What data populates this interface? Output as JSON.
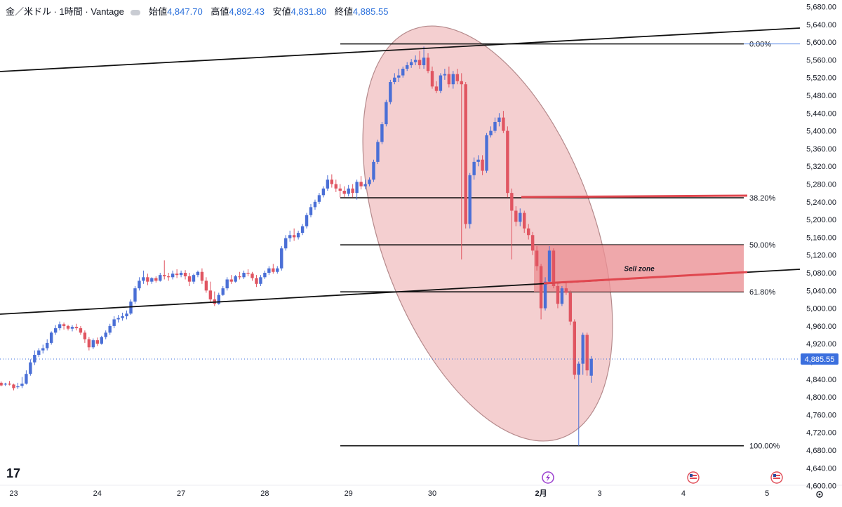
{
  "header": {
    "symbol": "金／米ドル · 1時間 · Vantage",
    "open_label": "始値",
    "open_value": "4,847.70",
    "high_label": "高値",
    "high_value": "4,892.43",
    "low_label": "安値",
    "low_value": "4,831.80",
    "close_label": "終値",
    "close_value": "4,885.55"
  },
  "last_price_label": "4,885.55",
  "logo_text": "17",
  "sell_zone_label": "Sell zone",
  "colors": {
    "up": "#4a6fd6",
    "down": "#e05561",
    "ellipse_fill": "#f2c4c6",
    "sell_zone_fill": "#ea8f94",
    "red_line": "#e0474f",
    "price_tag": "#3b6fde"
  },
  "chart_data": {
    "type": "candlestick",
    "ylim": [
      4600,
      5680
    ],
    "y_ticks": [
      "5,680.00",
      "5,640.00",
      "5,600.00",
      "5,560.00",
      "5,520.00",
      "5,480.00",
      "5,440.00",
      "5,400.00",
      "5,360.00",
      "5,320.00",
      "5,280.00",
      "5,240.00",
      "5,200.00",
      "5,160.00",
      "5,120.00",
      "5,080.00",
      "5,040.00",
      "5,000.00",
      "4,960.00",
      "4,920.00",
      "4,880.00",
      "4,840.00",
      "4,800.00",
      "4,760.00",
      "4,720.00",
      "4,680.00",
      "4,640.00",
      "4,600.00"
    ],
    "x_ticks": [
      {
        "label": "23",
        "index": 3
      },
      {
        "label": "24",
        "index": 23
      },
      {
        "label": "27",
        "index": 43
      },
      {
        "label": "28",
        "index": 63
      },
      {
        "label": "29",
        "index": 83
      },
      {
        "label": "30",
        "index": 103
      },
      {
        "label": "2月",
        "index": 129
      },
      {
        "label": "3",
        "index": 143
      },
      {
        "label": "4",
        "index": 163
      },
      {
        "label": "5",
        "index": 183
      }
    ],
    "candles": [
      [
        4832,
        4835,
        4826,
        4824
      ],
      [
        4828,
        4832,
        4830,
        4825
      ],
      [
        4830,
        4836,
        4828,
        4826
      ],
      [
        4828,
        4830,
        4820,
        4815
      ],
      [
        4822,
        4832,
        4824,
        4818
      ],
      [
        4825,
        4845,
        4830,
        4820
      ],
      [
        4830,
        4860,
        4852,
        4828
      ],
      [
        4852,
        4885,
        4878,
        4848
      ],
      [
        4878,
        4905,
        4895,
        4872
      ],
      [
        4895,
        4910,
        4905,
        4890
      ],
      [
        4905,
        4918,
        4910,
        4898
      ],
      [
        4910,
        4930,
        4922,
        4905
      ],
      [
        4922,
        4948,
        4945,
        4918
      ],
      [
        4945,
        4962,
        4955,
        4940
      ],
      [
        4955,
        4970,
        4964,
        4950
      ],
      [
        4964,
        4968,
        4960,
        4952
      ],
      [
        4960,
        4963,
        4954,
        4950
      ],
      [
        4954,
        4962,
        4958,
        4948
      ],
      [
        4958,
        4965,
        4955,
        4950
      ],
      [
        4955,
        4960,
        4945,
        4940
      ],
      [
        4945,
        4950,
        4930,
        4922
      ],
      [
        4930,
        4935,
        4912,
        4905
      ],
      [
        4912,
        4932,
        4928,
        4908
      ],
      [
        4928,
        4934,
        4920,
        4915
      ],
      [
        4920,
        4938,
        4935,
        4918
      ],
      [
        4935,
        4950,
        4945,
        4930
      ],
      [
        4945,
        4965,
        4960,
        4940
      ],
      [
        4960,
        4982,
        4975,
        4955
      ],
      [
        4975,
        4985,
        4978,
        4968
      ],
      [
        4978,
        4990,
        4982,
        4972
      ],
      [
        4982,
        4995,
        4988,
        4975
      ],
      [
        4988,
        5020,
        5015,
        4985
      ],
      [
        5015,
        5050,
        5045,
        5010
      ],
      [
        5045,
        5070,
        5062,
        5040
      ],
      [
        5062,
        5085,
        5070,
        5055
      ],
      [
        5070,
        5078,
        5060,
        5052
      ],
      [
        5060,
        5070,
        5068,
        5055
      ],
      [
        5068,
        5072,
        5062,
        5058
      ],
      [
        5062,
        5080,
        5075,
        5060
      ],
      [
        5075,
        5108,
        5072,
        5065
      ],
      [
        5072,
        5080,
        5070,
        5062
      ],
      [
        5070,
        5085,
        5078,
        5065
      ],
      [
        5078,
        5088,
        5075,
        5068
      ],
      [
        5075,
        5085,
        5080,
        5070
      ],
      [
        5080,
        5086,
        5072,
        5065
      ],
      [
        5072,
        5080,
        5060,
        5050
      ],
      [
        5060,
        5078,
        5075,
        5055
      ],
      [
        5075,
        5085,
        5082,
        5070
      ],
      [
        5082,
        5090,
        5062,
        5055
      ],
      [
        5062,
        5070,
        5040,
        5035
      ],
      [
        5040,
        5060,
        5020,
        5012
      ],
      [
        5020,
        5038,
        5010,
        5005
      ],
      [
        5010,
        5035,
        5030,
        5008
      ],
      [
        5030,
        5050,
        5045,
        5028
      ],
      [
        5045,
        5070,
        5065,
        5040
      ],
      [
        5065,
        5075,
        5060,
        5055
      ],
      [
        5060,
        5075,
        5072,
        5058
      ],
      [
        5072,
        5082,
        5070,
        5065
      ],
      [
        5070,
        5085,
        5080,
        5066
      ],
      [
        5080,
        5088,
        5078,
        5072
      ],
      [
        5078,
        5082,
        5068,
        5062
      ],
      [
        5068,
        5075,
        5055,
        5048
      ],
      [
        5055,
        5075,
        5070,
        5050
      ],
      [
        5070,
        5085,
        5080,
        5066
      ],
      [
        5080,
        5095,
        5090,
        5075
      ],
      [
        5090,
        5100,
        5082,
        5078
      ],
      [
        5082,
        5095,
        5090,
        5078
      ],
      [
        5090,
        5140,
        5135,
        5085
      ],
      [
        5135,
        5165,
        5158,
        5130
      ],
      [
        5158,
        5175,
        5165,
        5150
      ],
      [
        5165,
        5180,
        5160,
        5152
      ],
      [
        5160,
        5175,
        5170,
        5155
      ],
      [
        5170,
        5190,
        5185,
        5165
      ],
      [
        5185,
        5215,
        5210,
        5180
      ],
      [
        5210,
        5235,
        5228,
        5205
      ],
      [
        5228,
        5245,
        5240,
        5222
      ],
      [
        5240,
        5260,
        5255,
        5235
      ],
      [
        5255,
        5275,
        5270,
        5250
      ],
      [
        5270,
        5300,
        5290,
        5265
      ],
      [
        5290,
        5302,
        5280,
        5272
      ],
      [
        5280,
        5290,
        5270,
        5262
      ],
      [
        5270,
        5280,
        5265,
        5250
      ],
      [
        5265,
        5275,
        5258,
        5250
      ],
      [
        5258,
        5278,
        5270,
        5252
      ],
      [
        5270,
        5280,
        5260,
        5250
      ],
      [
        5260,
        5290,
        5285,
        5245
      ],
      [
        5285,
        5298,
        5275,
        5268
      ],
      [
        5275,
        5290,
        5280,
        5268
      ],
      [
        5280,
        5295,
        5290,
        5275
      ],
      [
        5290,
        5335,
        5330,
        5285
      ],
      [
        5330,
        5380,
        5375,
        5325
      ],
      [
        5375,
        5420,
        5415,
        5370
      ],
      [
        5415,
        5470,
        5465,
        5410
      ],
      [
        5465,
        5515,
        5510,
        5460
      ],
      [
        5510,
        5530,
        5520,
        5505
      ],
      [
        5520,
        5540,
        5525,
        5510
      ],
      [
        5525,
        5545,
        5540,
        5520
      ],
      [
        5540,
        5555,
        5548,
        5535
      ],
      [
        5548,
        5562,
        5555,
        5542
      ],
      [
        5555,
        5570,
        5560,
        5548
      ],
      [
        5560,
        5580,
        5548,
        5540
      ],
      [
        5548,
        5590,
        5565,
        5540
      ],
      [
        5565,
        5575,
        5535,
        5530
      ],
      [
        5535,
        5545,
        5500,
        5495
      ],
      [
        5500,
        5512,
        5490,
        5485
      ],
      [
        5490,
        5530,
        5525,
        5485
      ],
      [
        5525,
        5540,
        5528,
        5515
      ],
      [
        5528,
        5545,
        5505,
        5498
      ],
      [
        5505,
        5535,
        5528,
        5495
      ],
      [
        5528,
        5540,
        5512,
        5505
      ],
      [
        5512,
        5530,
        5505,
        5110
      ],
      [
        5505,
        5510,
        5190,
        5180
      ],
      [
        5190,
        5305,
        5300,
        5180
      ],
      [
        5300,
        5340,
        5330,
        5290
      ],
      [
        5330,
        5345,
        5335,
        5320
      ],
      [
        5335,
        5345,
        5310,
        5300
      ],
      [
        5310,
        5395,
        5390,
        5305
      ],
      [
        5390,
        5410,
        5400,
        5385
      ],
      [
        5400,
        5430,
        5420,
        5395
      ],
      [
        5420,
        5440,
        5430,
        5410
      ],
      [
        5430,
        5445,
        5400,
        5395
      ],
      [
        5400,
        5410,
        5260,
        5250
      ],
      [
        5260,
        5270,
        5220,
        5110
      ],
      [
        5220,
        5230,
        5195,
        5185
      ],
      [
        5195,
        5225,
        5215,
        5185
      ],
      [
        5215,
        5220,
        5180,
        5170
      ],
      [
        5180,
        5190,
        5165,
        5155
      ],
      [
        5165,
        5172,
        5130,
        5120
      ],
      [
        5130,
        5140,
        5095,
        5085
      ],
      [
        5095,
        5100,
        5000,
        4975
      ],
      [
        5000,
        5070,
        5060,
        4995
      ],
      [
        5060,
        5140,
        5130,
        5055
      ],
      [
        5130,
        5135,
        5050,
        5045
      ],
      [
        5050,
        5060,
        5010,
        5000
      ],
      [
        5010,
        5050,
        5045,
        5005
      ],
      [
        5045,
        5060,
        5035,
        5030
      ],
      [
        5035,
        5040,
        4970,
        4962
      ],
      [
        4970,
        4975,
        4850,
        4840
      ],
      [
        4850,
        4880,
        4875,
        4690
      ],
      [
        4875,
        4945,
        4940,
        4850
      ],
      [
        4940,
        4945,
        4860,
        4848
      ],
      [
        4848,
        4892,
        4886,
        4832
      ]
    ],
    "fib_levels": [
      {
        "label": "0.00%",
        "price": 5596
      },
      {
        "label": "38.20%",
        "price": 5249
      },
      {
        "label": "50.00%",
        "price": 5143
      },
      {
        "label": "61.80%",
        "price": 5037
      },
      {
        "label": "100.00%",
        "price": 4690
      }
    ],
    "last_price": 4885.55
  }
}
